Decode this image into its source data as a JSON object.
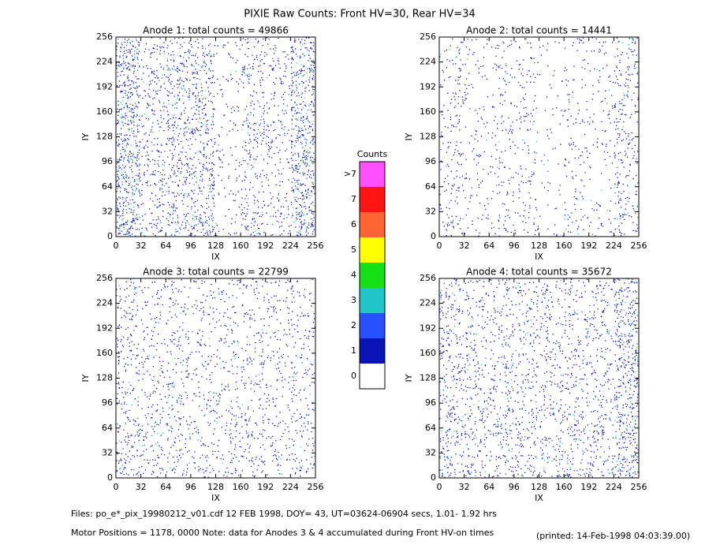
{
  "title": "PIXIE Raw Counts:  Front HV=30, Rear HV=34",
  "footer": {
    "files": "Files: po_e*_pix_19980212_v01.cdf    12 FEB 1998, DOY= 43, UT=03624-06904 secs,  1.01- 1.92 hrs",
    "motor": "Motor Positions = 1178, 0000   Note: data for Anodes 3 & 4 accumulated during Front HV-on times",
    "printed": "(printed: 14-Feb-1998 04:03:39.00)"
  },
  "colorbar": {
    "title": "Counts",
    "labels": [
      "0",
      "1",
      "2",
      "3",
      "4",
      "5",
      "6",
      "7",
      ">7"
    ],
    "colors": [
      "#ffffff",
      "#0a14b4",
      "#2850ff",
      "#20c4c8",
      "#14e014",
      "#ffff00",
      "#ff6432",
      "#ff1414",
      "#ff50ff"
    ]
  },
  "chart_data": [
    {
      "type": "heatmap",
      "title": "Anode 1: total counts = 49866",
      "xlabel": "IX",
      "ylabel": "IY",
      "xlim": [
        0,
        256
      ],
      "ylim": [
        0,
        256
      ],
      "xticks": [
        0,
        32,
        64,
        96,
        128,
        160,
        192,
        224,
        256
      ],
      "yticks": [
        0,
        32,
        64,
        96,
        128,
        160,
        192,
        224,
        256
      ],
      "values": [
        [
          1.2,
          0.5,
          0.6,
          0.9,
          0.2,
          0.7,
          0.4,
          1.0
        ],
        [
          1.0,
          0.4,
          0.5,
          0.6,
          0.2,
          0.4,
          0.3,
          0.9
        ],
        [
          1.1,
          0.6,
          0.7,
          0.8,
          0.2,
          0.3,
          0.3,
          0.9
        ],
        [
          1.1,
          0.5,
          0.6,
          0.5,
          0.2,
          0.5,
          0.4,
          1.0
        ],
        [
          1.0,
          0.4,
          0.7,
          0.8,
          0.2,
          0.6,
          0.4,
          0.9
        ],
        [
          1.0,
          0.5,
          0.6,
          0.7,
          0.2,
          0.3,
          0.3,
          0.8
        ],
        [
          1.1,
          0.5,
          0.7,
          0.7,
          0.2,
          0.6,
          0.4,
          1.0
        ],
        [
          0.9,
          0.4,
          0.5,
          0.5,
          0.2,
          0.4,
          0.3,
          0.8
        ]
      ]
    },
    {
      "type": "heatmap",
      "title": "Anode 2: total counts = 14441",
      "xlabel": "IX",
      "ylabel": "IY",
      "xlim": [
        0,
        256
      ],
      "ylim": [
        0,
        256
      ],
      "xticks": [
        0,
        32,
        64,
        96,
        128,
        160,
        192,
        224,
        256
      ],
      "yticks": [
        0,
        32,
        64,
        96,
        128,
        160,
        192,
        224,
        256
      ],
      "values": [
        [
          0.4,
          0.2,
          0.3,
          0.3,
          0.1,
          0.3,
          0.2,
          0.5
        ],
        [
          0.3,
          0.2,
          0.2,
          0.2,
          0.1,
          0.2,
          0.2,
          0.4
        ],
        [
          0.3,
          0.2,
          0.3,
          0.3,
          0.1,
          0.2,
          0.1,
          0.4
        ],
        [
          0.3,
          0.2,
          0.2,
          0.2,
          0.1,
          0.3,
          0.2,
          0.5
        ],
        [
          0.3,
          0.2,
          0.3,
          0.3,
          0.1,
          0.2,
          0.2,
          0.4
        ],
        [
          0.3,
          0.2,
          0.2,
          0.2,
          0.1,
          0.2,
          0.2,
          0.4
        ],
        [
          0.3,
          0.2,
          0.3,
          0.3,
          0.1,
          0.2,
          0.2,
          0.5
        ],
        [
          0.3,
          0.2,
          0.2,
          0.2,
          0.1,
          0.2,
          0.2,
          0.4
        ]
      ]
    },
    {
      "type": "heatmap",
      "title": "Anode 3: total counts = 22799",
      "xlabel": "IX",
      "ylabel": "IY",
      "xlim": [
        0,
        256
      ],
      "ylim": [
        0,
        256
      ],
      "xticks": [
        0,
        32,
        64,
        96,
        128,
        160,
        192,
        224,
        256
      ],
      "yticks": [
        0,
        32,
        64,
        96,
        128,
        160,
        192,
        224,
        256
      ],
      "values": [
        [
          0.6,
          0.4,
          0.4,
          0.4,
          0.4,
          0.4,
          0.3,
          0.4
        ],
        [
          0.5,
          0.4,
          0.4,
          0.3,
          0.3,
          0.4,
          0.3,
          0.3
        ],
        [
          0.4,
          0.4,
          0.4,
          0.3,
          0.4,
          0.4,
          0.3,
          0.4
        ],
        [
          0.4,
          0.3,
          0.4,
          0.3,
          0.3,
          0.3,
          0.3,
          0.3
        ],
        [
          0.4,
          0.4,
          0.4,
          0.3,
          0.3,
          0.4,
          0.3,
          0.4
        ],
        [
          0.4,
          0.3,
          0.4,
          0.3,
          0.3,
          0.3,
          0.3,
          0.3
        ],
        [
          0.4,
          0.3,
          0.3,
          0.3,
          0.3,
          0.3,
          0.3,
          0.3
        ],
        [
          0.4,
          0.3,
          0.3,
          0.3,
          0.3,
          0.3,
          0.3,
          0.3
        ]
      ]
    },
    {
      "type": "heatmap",
      "title": "Anode 4: total counts = 35672",
      "xlabel": "IX",
      "ylabel": "IY",
      "xlim": [
        0,
        256
      ],
      "ylim": [
        0,
        256
      ],
      "xticks": [
        0,
        32,
        64,
        96,
        128,
        160,
        192,
        224,
        256
      ],
      "yticks": [
        0,
        32,
        64,
        96,
        128,
        160,
        192,
        224,
        256
      ],
      "values": [
        [
          0.6,
          0.5,
          0.5,
          0.5,
          0.5,
          0.5,
          0.5,
          0.9
        ],
        [
          0.6,
          0.5,
          0.5,
          0.5,
          0.4,
          0.5,
          0.5,
          0.8
        ],
        [
          0.5,
          0.5,
          0.5,
          0.4,
          0.5,
          0.5,
          0.4,
          0.8
        ],
        [
          0.5,
          0.4,
          0.5,
          0.4,
          0.4,
          0.4,
          0.4,
          0.8
        ],
        [
          0.5,
          0.5,
          0.5,
          0.4,
          0.4,
          0.5,
          0.4,
          0.8
        ],
        [
          0.5,
          0.4,
          0.4,
          0.4,
          0.4,
          0.4,
          0.4,
          0.8
        ],
        [
          0.5,
          0.4,
          0.4,
          0.4,
          0.4,
          0.4,
          0.4,
          0.9
        ],
        [
          0.5,
          0.4,
          0.4,
          0.4,
          0.4,
          0.4,
          0.4,
          0.8
        ]
      ]
    }
  ]
}
